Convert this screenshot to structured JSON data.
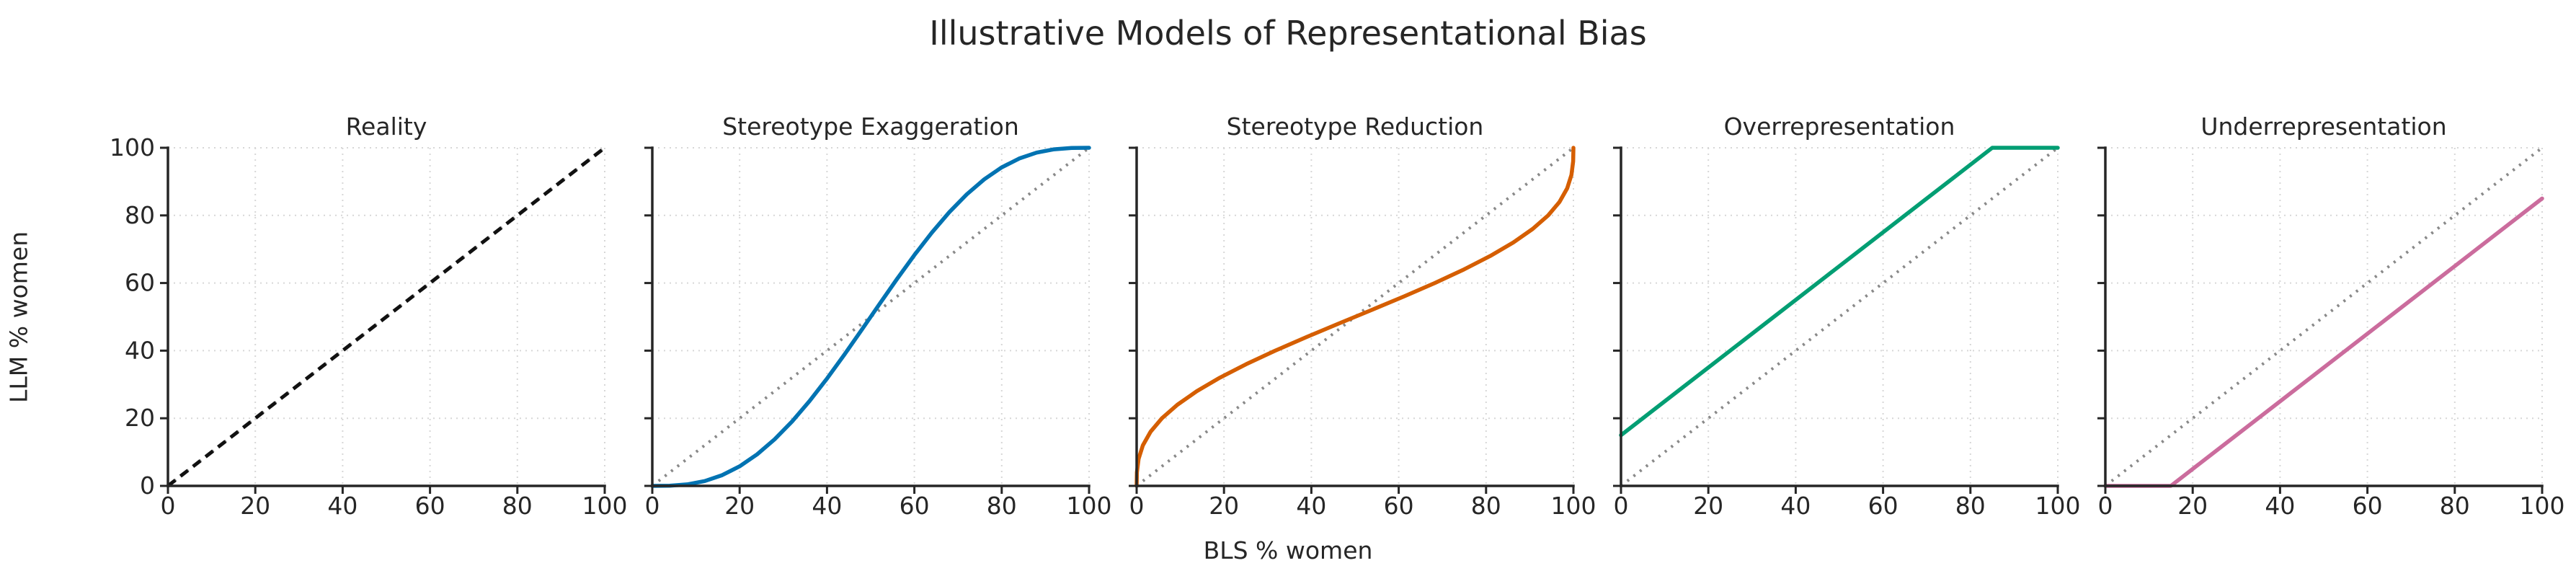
{
  "figure": {
    "background": "#ffffff",
    "text_color": "#262626"
  },
  "chart_data": {
    "type": "line",
    "suptitle": "Illustrative Models of Representational Bias",
    "xlabel": "BLS % women",
    "ylabel": "LLM % women",
    "xlim": [
      0,
      100
    ],
    "ylim": [
      0,
      100
    ],
    "xticks": [
      0,
      20,
      40,
      60,
      80,
      100
    ],
    "yticks": [
      0,
      20,
      40,
      60,
      80,
      100
    ],
    "grid": true,
    "legend": false,
    "grid_color": "#d7d7d7",
    "identity_line": {
      "label": "identity reference (y = x)",
      "color": "#898989",
      "style": "dotted",
      "points": [
        [
          0,
          0
        ],
        [
          100,
          100
        ]
      ]
    },
    "panels": [
      {
        "title": "Reality",
        "color": "#111111",
        "line_style": "dashed",
        "show_y_tick_labels": true,
        "points": [
          [
            0,
            0
          ],
          [
            100,
            100
          ]
        ]
      },
      {
        "title": "Stereotype Exaggeration",
        "color": "#0173b2",
        "line_style": "solid",
        "show_y_tick_labels": false,
        "points": [
          [
            0,
            0
          ],
          [
            4,
            0.06
          ],
          [
            8,
            0.45
          ],
          [
            12,
            1.43
          ],
          [
            16,
            3.18
          ],
          [
            20,
            5.79
          ],
          [
            24,
            9.33
          ],
          [
            28,
            13.77
          ],
          [
            32,
            19.05
          ],
          [
            36,
            25.09
          ],
          [
            40,
            31.74
          ],
          [
            44,
            38.86
          ],
          [
            48,
            46.25
          ],
          [
            50,
            50
          ],
          [
            52,
            53.75
          ],
          [
            56,
            61.14
          ],
          [
            60,
            68.26
          ],
          [
            64,
            74.91
          ],
          [
            68,
            80.95
          ],
          [
            72,
            86.23
          ],
          [
            76,
            90.67
          ],
          [
            80,
            94.21
          ],
          [
            84,
            96.82
          ],
          [
            88,
            98.57
          ],
          [
            92,
            99.55
          ],
          [
            96,
            99.94
          ],
          [
            100,
            100
          ]
        ]
      },
      {
        "title": "Stereotype Reduction",
        "color": "#d55e00",
        "line_style": "solid",
        "show_y_tick_labels": false,
        "points": [
          [
            0,
            0
          ],
          [
            0.06,
            4
          ],
          [
            0.45,
            8
          ],
          [
            1.43,
            12
          ],
          [
            3.18,
            16
          ],
          [
            5.79,
            20
          ],
          [
            9.33,
            24
          ],
          [
            13.77,
            28
          ],
          [
            19.05,
            32
          ],
          [
            25.09,
            36
          ],
          [
            31.74,
            40
          ],
          [
            38.86,
            44
          ],
          [
            46.25,
            48
          ],
          [
            50,
            50
          ],
          [
            53.75,
            52
          ],
          [
            61.14,
            56
          ],
          [
            68.26,
            60
          ],
          [
            74.91,
            64
          ],
          [
            80.95,
            68
          ],
          [
            86.23,
            72
          ],
          [
            90.67,
            76
          ],
          [
            94.21,
            80
          ],
          [
            96.82,
            84
          ],
          [
            98.57,
            88
          ],
          [
            99.55,
            92
          ],
          [
            99.94,
            96
          ],
          [
            100,
            100
          ]
        ]
      },
      {
        "title": "Overrepresentation",
        "color": "#029e73",
        "line_style": "solid",
        "show_y_tick_labels": false,
        "points": [
          [
            0,
            15
          ],
          [
            85,
            100
          ],
          [
            100,
            100
          ]
        ]
      },
      {
        "title": "Underrepresentation",
        "color": "#cb6c9d",
        "line_style": "solid",
        "show_y_tick_labels": false,
        "points": [
          [
            0,
            0
          ],
          [
            15,
            0
          ],
          [
            100,
            85
          ]
        ]
      }
    ]
  }
}
